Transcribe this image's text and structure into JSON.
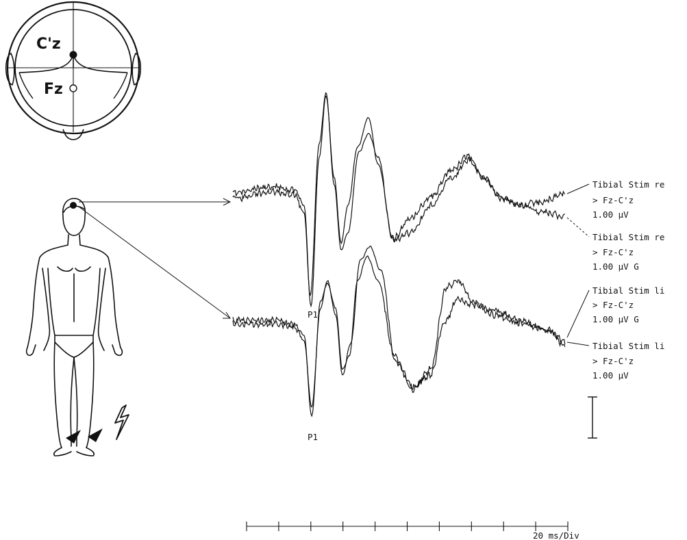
{
  "electrodes": {
    "active": "C'z",
    "reference": "Fz"
  },
  "peaks": {
    "upper": "P1",
    "lower": "P1"
  },
  "traces": [
    {
      "lines": [
        "Tibial Stim re",
        "> Fz-C'z",
        "1.00 µV"
      ]
    },
    {
      "lines": [
        "Tibial Stim re",
        "> Fz-C'z",
        "1.00 µV G"
      ]
    },
    {
      "lines": [
        "Tibial Stim li",
        "> Fz-C'z",
        "1.00 µV G"
      ]
    },
    {
      "lines": [
        "Tibial Stim li",
        "> Fz-C'z",
        "1.00 µV"
      ]
    }
  ],
  "timebase": {
    "label": "20 ms/Div"
  },
  "icons": {
    "stimulus": "lightning-bolt-icon",
    "head": "head-top-view-icon",
    "body": "human-figure-icon"
  },
  "colors": {
    "ink": "#111111",
    "background": "#ffffff"
  }
}
